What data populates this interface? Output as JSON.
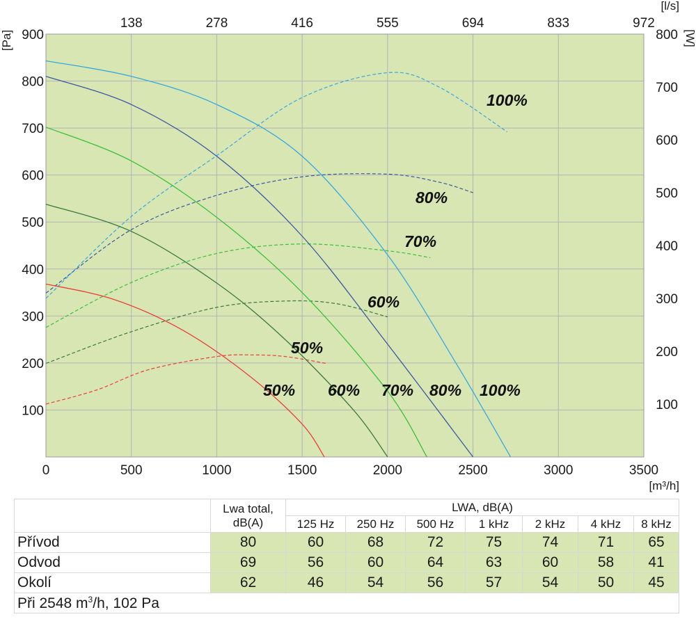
{
  "chart_data": {
    "type": "line",
    "xaxis": {
      "label": "[m³/h]",
      "range": [
        0,
        3500
      ],
      "ticks": [
        0,
        500,
        1000,
        1500,
        2000,
        2500,
        3000,
        3500
      ]
    },
    "xaxis_top": {
      "label": "[l/s]",
      "ticks": [
        "138",
        "278",
        "416",
        "555",
        "694",
        "833",
        "972"
      ],
      "tick_x_m3h": [
        500,
        1000,
        1500,
        2000,
        2500,
        3000,
        3500
      ]
    },
    "yaxis_left": {
      "label": "[Pa]",
      "range": [
        0,
        900
      ],
      "ticks": [
        100,
        200,
        300,
        400,
        500,
        600,
        700,
        800,
        900
      ]
    },
    "yaxis_right": {
      "label": "[W]",
      "range": [
        0,
        800
      ],
      "ticks": [
        100,
        200,
        300,
        400,
        500,
        600,
        700,
        800
      ]
    },
    "grid": true,
    "background": "#d8e6b4",
    "pressure_curves": [
      {
        "name": "50%",
        "color": "#e8403a",
        "points": [
          [
            0,
            368
          ],
          [
            400,
            335
          ],
          [
            800,
            270
          ],
          [
            1200,
            170
          ],
          [
            1500,
            70
          ],
          [
            1630,
            0
          ]
        ]
      },
      {
        "name": "60%",
        "color": "#3a7a3a",
        "points": [
          [
            0,
            538
          ],
          [
            500,
            480
          ],
          [
            1000,
            370
          ],
          [
            1400,
            250
          ],
          [
            1800,
            100
          ],
          [
            2000,
            0
          ]
        ]
      },
      {
        "name": "70%",
        "color": "#3ac03a",
        "points": [
          [
            0,
            702
          ],
          [
            500,
            630
          ],
          [
            1000,
            510
          ],
          [
            1500,
            350
          ],
          [
            2000,
            140
          ],
          [
            2230,
            0
          ]
        ]
      },
      {
        "name": "80%",
        "color": "#3a5aa0",
        "points": [
          [
            0,
            810
          ],
          [
            500,
            750
          ],
          [
            1000,
            640
          ],
          [
            1500,
            470
          ],
          [
            2000,
            240
          ],
          [
            2500,
            0
          ]
        ]
      },
      {
        "name": "100%",
        "color": "#35a8de",
        "points": [
          [
            0,
            843
          ],
          [
            500,
            810
          ],
          [
            1000,
            750
          ],
          [
            1500,
            640
          ],
          [
            2000,
            430
          ],
          [
            2400,
            200
          ],
          [
            2720,
            0
          ]
        ]
      }
    ],
    "power_curves": [
      {
        "name": "50%",
        "color": "#e8403a",
        "points": [
          [
            0,
            100
          ],
          [
            300,
            127
          ],
          [
            600,
            165
          ],
          [
            1000,
            190
          ],
          [
            1200,
            193
          ],
          [
            1400,
            190
          ],
          [
            1640,
            177
          ]
        ]
      },
      {
        "name": "60%",
        "color": "#3a7a3a",
        "points": [
          [
            0,
            177
          ],
          [
            500,
            237
          ],
          [
            1000,
            283
          ],
          [
            1400,
            295
          ],
          [
            1700,
            290
          ],
          [
            2000,
            265
          ]
        ]
      },
      {
        "name": "70%",
        "color": "#3ac03a",
        "points": [
          [
            0,
            245
          ],
          [
            500,
            330
          ],
          [
            1000,
            385
          ],
          [
            1500,
            403
          ],
          [
            2000,
            390
          ],
          [
            2250,
            377
          ]
        ]
      },
      {
        "name": "80%",
        "color": "#3a5aa0",
        "points": [
          [
            0,
            310
          ],
          [
            500,
            430
          ],
          [
            1000,
            495
          ],
          [
            1500,
            530
          ],
          [
            2000,
            535
          ],
          [
            2300,
            520
          ],
          [
            2500,
            500
          ]
        ]
      },
      {
        "name": "100%",
        "color": "#35a8de",
        "points": [
          [
            0,
            300
          ],
          [
            500,
            455
          ],
          [
            1000,
            570
          ],
          [
            1500,
            680
          ],
          [
            2000,
            727
          ],
          [
            2300,
            700
          ],
          [
            2700,
            615
          ]
        ]
      }
    ],
    "curve_labels_pressure": [
      "50%",
      "60%",
      "70%",
      "80%",
      "100%"
    ],
    "curve_labels_power": [
      "50%",
      "60%",
      "70%",
      "80%",
      "100%"
    ]
  },
  "table": {
    "lwa_total_label": "Lwa total,",
    "lwa_total_unit": "dB(A)",
    "lwa_label": "LWA, dB(A)",
    "frequencies": [
      "125 Hz",
      "250 Hz",
      "500 Hz",
      "1 kHz",
      "2 kHz",
      "4 kHz",
      "8 kHz"
    ],
    "rows": [
      {
        "label": "Přívod",
        "total": "80",
        "values": [
          "60",
          "68",
          "72",
          "75",
          "74",
          "71",
          "65"
        ]
      },
      {
        "label": "Odvod",
        "total": "69",
        "values": [
          "56",
          "60",
          "64",
          "63",
          "60",
          "58",
          "41"
        ]
      },
      {
        "label": "Okolí",
        "total": "62",
        "values": [
          "46",
          "54",
          "56",
          "57",
          "54",
          "50",
          "45"
        ]
      }
    ],
    "footnote_prefix": "Při 2548 m",
    "footnote_sup": "3",
    "footnote_suffix": "/h, 102 Pa"
  }
}
